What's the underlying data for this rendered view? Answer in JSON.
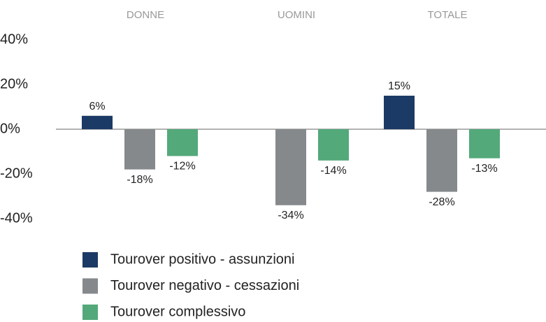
{
  "chart_data": {
    "type": "bar",
    "categories": [
      "DONNE",
      "UOMINI",
      "TOTALE"
    ],
    "series": [
      {
        "name": "Tourover positivo - assunzioni",
        "color": "#1c3a66",
        "values": [
          6,
          null,
          15
        ],
        "value_labels": [
          "6%",
          null,
          "15%"
        ]
      },
      {
        "name": "Tourover negativo - cessazioni",
        "color": "#85898c",
        "values": [
          -18,
          -34,
          -28
        ],
        "value_labels": [
          "-18%",
          "-34%",
          "-28%"
        ]
      },
      {
        "name": "Tourover complessivo",
        "color": "#53a97a",
        "values": [
          -12,
          -14,
          -13
        ],
        "value_labels": [
          "-12%",
          "-14%",
          "-13%"
        ]
      }
    ],
    "ylim": [
      -40,
      40
    ],
    "yticks": [
      {
        "value": 40,
        "label": "40%"
      },
      {
        "value": 20,
        "label": "20%"
      },
      {
        "value": 0,
        "label": "0%"
      },
      {
        "value": -20,
        "label": "-20%"
      },
      {
        "value": -40,
        "label": "-40%"
      }
    ],
    "legend": "bottom"
  }
}
